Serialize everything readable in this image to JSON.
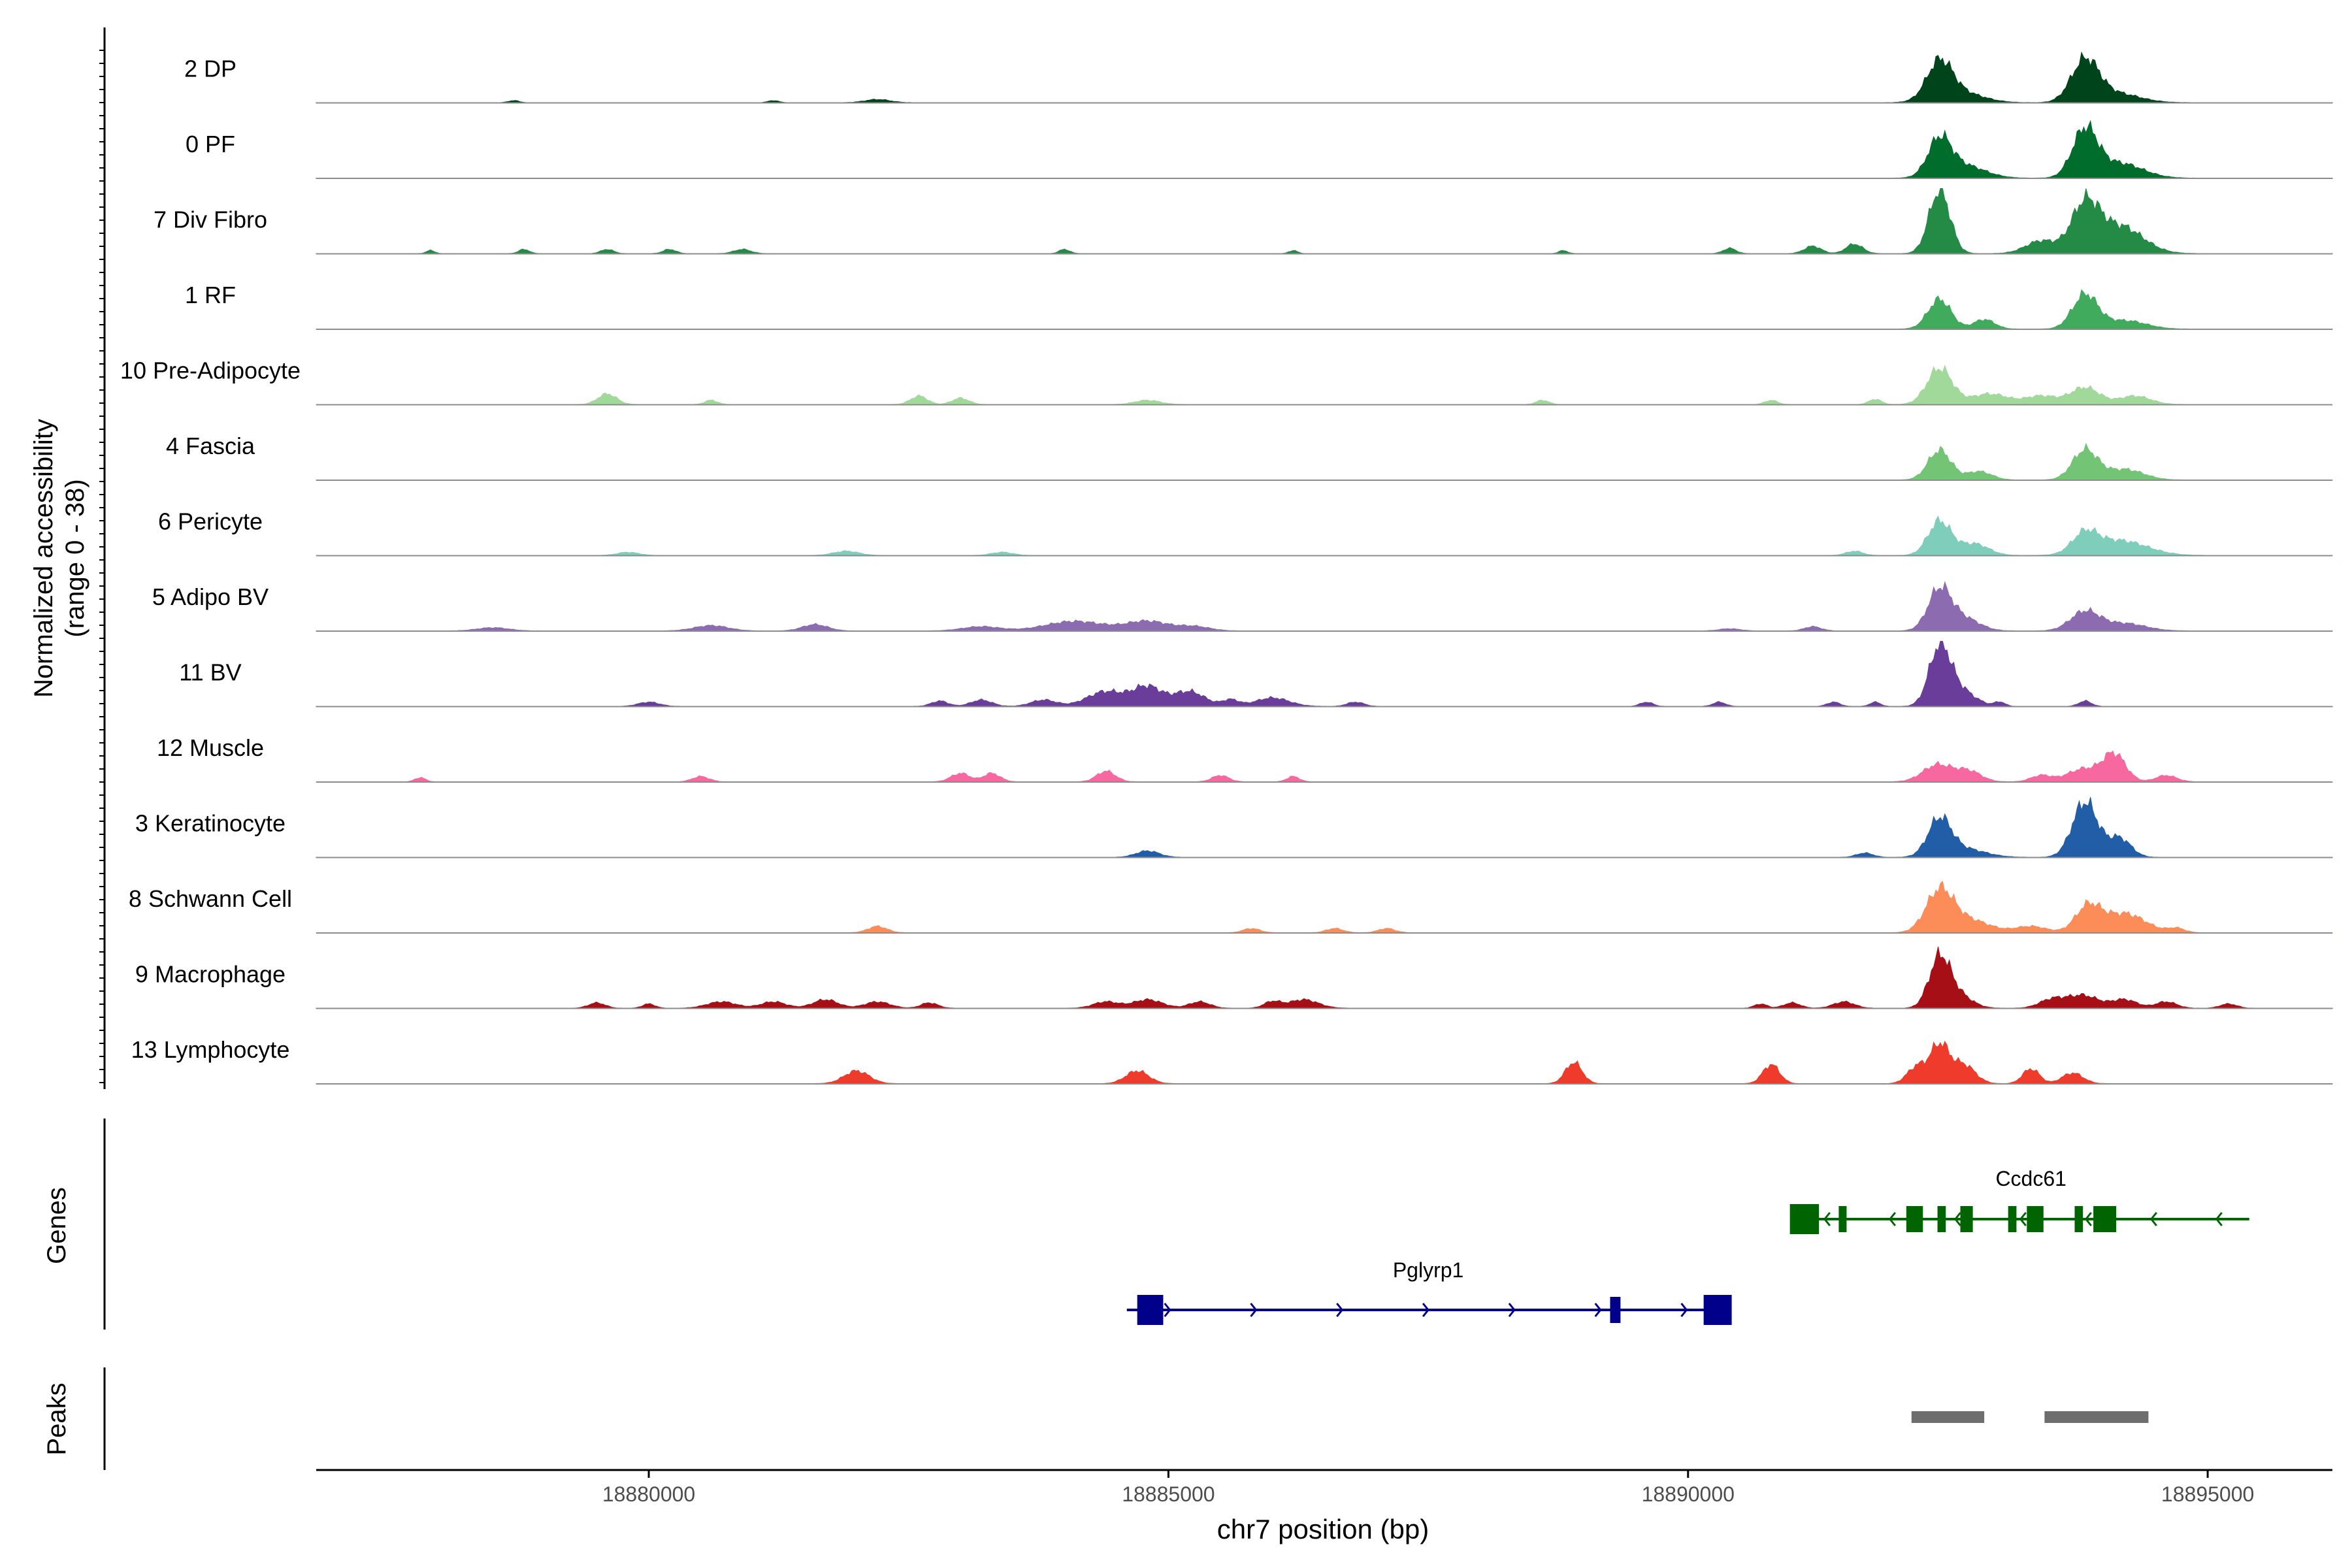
{
  "chart_data": {
    "type": "area",
    "title": "",
    "xlabel": "chr7 position (bp)",
    "ylabel": "Normalized accessibility",
    "ylabel_sub": "(range 0 - 38)",
    "xlim": [
      18876800,
      18896200
    ],
    "ylim": [
      0,
      38
    ],
    "x_ticks": [
      18880000,
      18885000,
      18890000,
      18895000
    ],
    "x_tick_labels": [
      "18880000",
      "18885000",
      "18890000",
      "18895000"
    ],
    "panels": [
      "Genes",
      "Peaks"
    ],
    "series": [
      {
        "name": "2 DP",
        "color": "#00441b",
        "peaks": [
          [
            18892420,
            34,
            120
          ],
          [
            18893820,
            38,
            130
          ],
          [
            18892600,
            10,
            220
          ],
          [
            18894100,
            9,
            230
          ],
          [
            18878700,
            2,
            50
          ],
          [
            18881200,
            2,
            50
          ],
          [
            18882200,
            3,
            120
          ]
        ]
      },
      {
        "name": "0 PF",
        "color": "#006d2c",
        "peaks": [
          [
            18892420,
            34,
            110
          ],
          [
            18893820,
            44,
            120
          ],
          [
            18892650,
            12,
            200
          ],
          [
            18894150,
            14,
            220
          ]
        ]
      },
      {
        "name": "7 Div Fibro",
        "color": "#238b45",
        "peaks": [
          [
            18892420,
            60,
            100
          ],
          [
            18893820,
            44,
            130
          ],
          [
            18894150,
            26,
            220
          ],
          [
            18893400,
            12,
            150
          ],
          [
            18891200,
            7,
            80
          ],
          [
            18891600,
            9,
            80
          ],
          [
            18890400,
            5,
            60
          ],
          [
            18877900,
            3,
            40
          ],
          [
            18878800,
            4,
            50
          ],
          [
            18879600,
            4,
            60
          ],
          [
            18880200,
            4,
            60
          ],
          [
            18880900,
            4,
            80
          ],
          [
            18884000,
            4,
            50
          ],
          [
            18886200,
            3,
            40
          ],
          [
            18888800,
            3,
            40
          ]
        ]
      },
      {
        "name": "1 RF",
        "color": "#41ab5d",
        "peaks": [
          [
            18892420,
            28,
            110
          ],
          [
            18893820,
            32,
            120
          ],
          [
            18892850,
            9,
            100
          ],
          [
            18894200,
            8,
            200
          ]
        ]
      },
      {
        "name": "10 Pre-Adipocyte",
        "color": "#a1d99b",
        "peaks": [
          [
            18892420,
            34,
            120
          ],
          [
            18893820,
            16,
            140
          ],
          [
            18892900,
            10,
            180
          ],
          [
            18893400,
            8,
            150
          ],
          [
            18894300,
            8,
            150
          ],
          [
            18879600,
            10,
            90
          ],
          [
            18882600,
            8,
            80
          ],
          [
            18883000,
            6,
            80
          ],
          [
            18880600,
            4,
            60
          ],
          [
            18884800,
            4,
            120
          ],
          [
            18888600,
            4,
            60
          ],
          [
            18890800,
            4,
            60
          ],
          [
            18891800,
            5,
            60
          ]
        ]
      },
      {
        "name": "4 Fascia",
        "color": "#74c476",
        "peaks": [
          [
            18892420,
            28,
            110
          ],
          [
            18893820,
            28,
            120
          ],
          [
            18892800,
            8,
            120
          ],
          [
            18894200,
            10,
            180
          ]
        ]
      },
      {
        "name": "6 Pericyte",
        "color": "#7fcdbb",
        "peaks": [
          [
            18892420,
            32,
            110
          ],
          [
            18893820,
            18,
            120
          ],
          [
            18894150,
            14,
            260
          ],
          [
            18892750,
            11,
            140
          ],
          [
            18879800,
            3,
            100
          ],
          [
            18881900,
            4,
            120
          ],
          [
            18883400,
            3,
            100
          ],
          [
            18891600,
            4,
            80
          ]
        ]
      },
      {
        "name": "5 Adipo BV",
        "color": "#8c6bb1",
        "peaks": [
          [
            18892420,
            38,
            110
          ],
          [
            18893820,
            18,
            140
          ],
          [
            18892650,
            12,
            150
          ],
          [
            18894200,
            7,
            200
          ],
          [
            18884100,
            9,
            280
          ],
          [
            18884800,
            9,
            200
          ],
          [
            18885250,
            4,
            150
          ],
          [
            18880600,
            5,
            160
          ],
          [
            18881600,
            6,
            120
          ],
          [
            18883200,
            4,
            180
          ],
          [
            18878500,
            3,
            150
          ],
          [
            18891200,
            4,
            80
          ],
          [
            18890400,
            2,
            100
          ]
        ]
      },
      {
        "name": "11 BV",
        "color": "#6a3d9a",
        "peaks": [
          [
            18892420,
            52,
            100
          ],
          [
            18892600,
            16,
            150
          ],
          [
            18884400,
            14,
            180
          ],
          [
            18884800,
            18,
            140
          ],
          [
            18885200,
            14,
            150
          ],
          [
            18883800,
            6,
            120
          ],
          [
            18883200,
            6,
            100
          ],
          [
            18882800,
            5,
            80
          ],
          [
            18885600,
            6,
            80
          ],
          [
            18886000,
            8,
            160
          ],
          [
            18886800,
            4,
            80
          ],
          [
            18880000,
            4,
            100
          ],
          [
            18889600,
            4,
            60
          ],
          [
            18890300,
            4,
            60
          ],
          [
            18891400,
            4,
            60
          ],
          [
            18891800,
            4,
            50
          ],
          [
            18893000,
            4,
            50
          ],
          [
            18893820,
            5,
            60
          ]
        ]
      },
      {
        "name": "12 Muscle",
        "color": "#f768a1",
        "peaks": [
          [
            18894100,
            26,
            110
          ],
          [
            18892400,
            16,
            140
          ],
          [
            18892700,
            10,
            120
          ],
          [
            18893800,
            12,
            150
          ],
          [
            18893400,
            6,
            100
          ],
          [
            18894600,
            6,
            100
          ],
          [
            18884400,
            10,
            90
          ],
          [
            18883000,
            8,
            90
          ],
          [
            18883300,
            8,
            80
          ],
          [
            18880500,
            5,
            80
          ],
          [
            18886200,
            5,
            60
          ],
          [
            18885500,
            6,
            80
          ],
          [
            18877800,
            4,
            50
          ]
        ]
      },
      {
        "name": "3 Keratinocyte",
        "color": "#225ea8",
        "peaks": [
          [
            18892420,
            34,
            110
          ],
          [
            18893820,
            52,
            120
          ],
          [
            18894150,
            18,
            110
          ],
          [
            18892650,
            8,
            200
          ],
          [
            18884800,
            6,
            110
          ],
          [
            18891700,
            4,
            80
          ]
        ]
      },
      {
        "name": "8 Schwann Cell",
        "color": "#fc8d59",
        "peaks": [
          [
            18892420,
            38,
            130
          ],
          [
            18893850,
            24,
            120
          ],
          [
            18894200,
            18,
            200
          ],
          [
            18892700,
            12,
            200
          ],
          [
            18893300,
            6,
            150
          ],
          [
            18882200,
            6,
            90
          ],
          [
            18885800,
            4,
            80
          ],
          [
            18886600,
            4,
            80
          ],
          [
            18887100,
            4,
            80
          ],
          [
            18894700,
            4,
            80
          ]
        ]
      },
      {
        "name": "9 Macrophage",
        "color": "#a50f15",
        "peaks": [
          [
            18892420,
            46,
            100
          ],
          [
            18892600,
            12,
            130
          ],
          [
            18893800,
            12,
            150
          ],
          [
            18893500,
            8,
            120
          ],
          [
            18891500,
            6,
            100
          ],
          [
            18891000,
            5,
            80
          ],
          [
            18894200,
            8,
            120
          ],
          [
            18894600,
            6,
            100
          ],
          [
            18895200,
            4,
            80
          ],
          [
            18881700,
            8,
            120
          ],
          [
            18881200,
            6,
            120
          ],
          [
            18880700,
            6,
            140
          ],
          [
            18882200,
            6,
            120
          ],
          [
            18884800,
            8,
            140
          ],
          [
            18884400,
            6,
            120
          ],
          [
            18885300,
            6,
            100
          ],
          [
            18886300,
            8,
            140
          ],
          [
            18886000,
            6,
            80
          ],
          [
            18879500,
            5,
            80
          ],
          [
            18880000,
            4,
            60
          ],
          [
            18882700,
            5,
            80
          ],
          [
            18890700,
            4,
            60
          ]
        ]
      },
      {
        "name": "13 Lymphocyte",
        "color": "#ef3b2c",
        "peaks": [
          [
            18892420,
            36,
            90
          ],
          [
            18892200,
            16,
            90
          ],
          [
            18892650,
            18,
            110
          ],
          [
            18893300,
            14,
            80
          ],
          [
            18893700,
            10,
            100
          ],
          [
            18882000,
            12,
            120
          ],
          [
            18884700,
            12,
            110
          ],
          [
            18888900,
            20,
            80
          ],
          [
            18890800,
            18,
            80
          ]
        ]
      }
    ],
    "genes": [
      {
        "name": "Pglyrp1",
        "strand": "+",
        "color": "#00008b",
        "start": 18884600,
        "end": 18890400,
        "exons": [
          [
            18884700,
            18884950,
            "utr"
          ],
          [
            18889250,
            18889350,
            "cds"
          ],
          [
            18890150,
            18890420,
            "utr"
          ]
        ]
      },
      {
        "name": "Ccdc61",
        "strand": "-",
        "color": "#006400",
        "start": 18891000,
        "end": 18895400,
        "exons": [
          [
            18890980,
            18891260,
            "utr"
          ],
          [
            18891450,
            18891520,
            "cds"
          ],
          [
            18892100,
            18892260,
            "cds"
          ],
          [
            18892400,
            18892480,
            "cds"
          ],
          [
            18892620,
            18892740,
            "cds"
          ],
          [
            18893080,
            18893160,
            "cds"
          ],
          [
            18893260,
            18893420,
            "cds"
          ],
          [
            18893720,
            18893800,
            "cds"
          ],
          [
            18893900,
            18894120,
            "cds"
          ]
        ]
      }
    ],
    "peaks_track": [
      [
        18892150,
        18892850
      ],
      [
        18893430,
        18894430
      ]
    ]
  }
}
